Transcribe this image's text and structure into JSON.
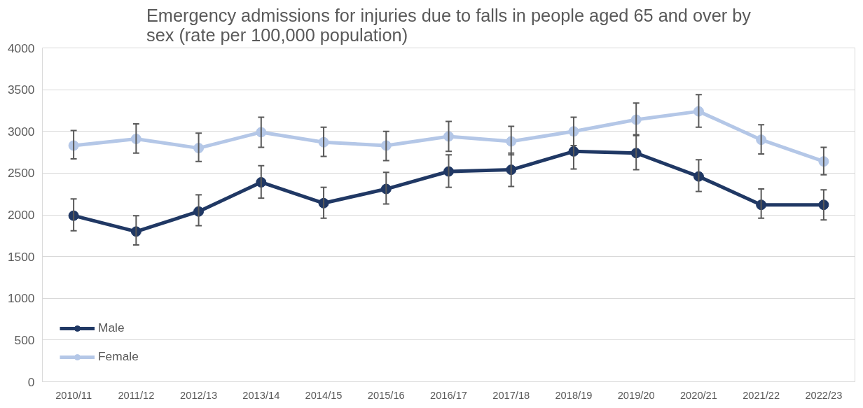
{
  "chart_data": {
    "type": "line",
    "title": "Emergency admissions for injuries due to falls in people aged 65 and over by sex (rate per 100,000 population)",
    "categories": [
      "2010/11",
      "2011/12",
      "2012/13",
      "2013/14",
      "2014/15",
      "2015/16",
      "2016/17",
      "2017/18",
      "2018/19",
      "2019/20",
      "2020/21",
      "2021/22",
      "2022/23"
    ],
    "series": [
      {
        "name": "Male",
        "color": "#203864",
        "values": [
          1990,
          1800,
          2040,
          2390,
          2140,
          2310,
          2520,
          2540,
          2760,
          2740,
          2460,
          2120,
          2120
        ],
        "errors": [
          [
            1810,
            2190
          ],
          [
            1640,
            1990
          ],
          [
            1870,
            2240
          ],
          [
            2200,
            2590
          ],
          [
            1960,
            2330
          ],
          [
            2130,
            2510
          ],
          [
            2330,
            2720
          ],
          [
            2340,
            2740
          ],
          [
            2550,
            2960
          ],
          [
            2540,
            2950
          ],
          [
            2280,
            2660
          ],
          [
            1960,
            2310
          ],
          [
            1940,
            2300
          ]
        ]
      },
      {
        "name": "Female",
        "color": "#b4c7e7",
        "values": [
          2830,
          2910,
          2800,
          2990,
          2870,
          2830,
          2940,
          2880,
          3000,
          3140,
          3240,
          2900,
          2640
        ],
        "errors": [
          [
            2670,
            3010
          ],
          [
            2740,
            3090
          ],
          [
            2640,
            2980
          ],
          [
            2810,
            3170
          ],
          [
            2700,
            3050
          ],
          [
            2650,
            3000
          ],
          [
            2760,
            3120
          ],
          [
            2720,
            3060
          ],
          [
            2830,
            3170
          ],
          [
            2960,
            3340
          ],
          [
            3050,
            3440
          ],
          [
            2730,
            3080
          ],
          [
            2480,
            2810
          ]
        ]
      }
    ],
    "ylim": [
      0,
      4000
    ],
    "yticks": [
      0,
      500,
      1000,
      1500,
      2000,
      2500,
      3000,
      3500,
      4000
    ],
    "grid": "y",
    "legend": "bottom left",
    "marker": "circle",
    "line_style": "solid"
  }
}
